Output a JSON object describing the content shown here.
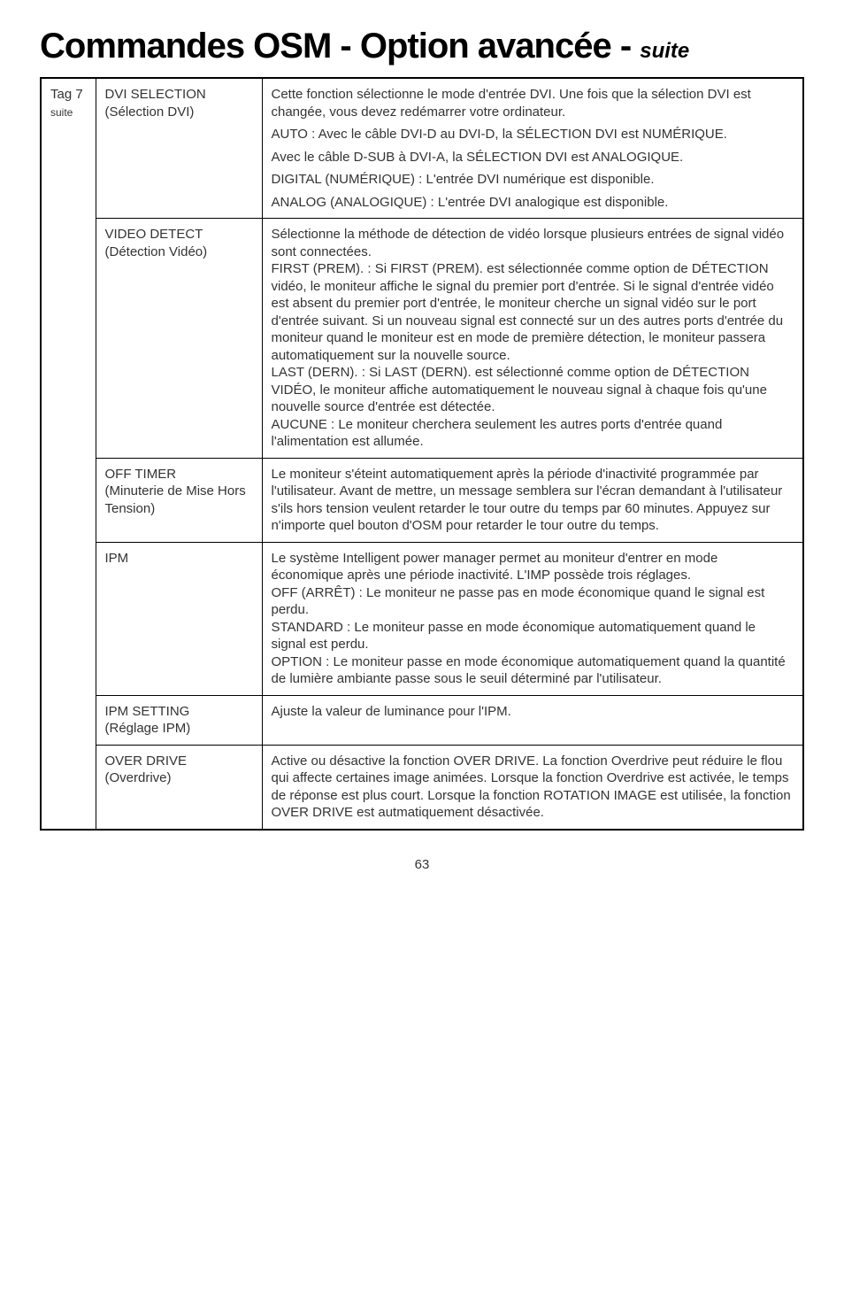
{
  "title_main": "Commandes OSM - Option avancée - ",
  "title_suite": "suite",
  "tag_label": "Tag 7",
  "tag_sub": "suite",
  "rows": [
    {
      "name": "DVI SELECTION",
      "name_sub": "(Sélection DVI)",
      "desc": [
        "Cette fonction sélectionne le mode d'entrée DVI. Une fois que la sélection DVI est changée, vous devez redémarrer votre ordinateur.",
        "AUTO : Avec le câble DVI-D au DVI-D, la SÉLECTION DVI est NUMÉRIQUE.",
        "Avec le câble D-SUB à DVI-A, la SÉLECTION DVI est ANALOGIQUE.",
        "DIGITAL (NUMÉRIQUE) : L'entrée DVI numérique est disponible.",
        "ANALOG (ANALOGIQUE) : L'entrée DVI analogique est disponible."
      ]
    },
    {
      "name": "VIDEO DETECT",
      "name_sub": "(Détection Vidéo)",
      "desc": [
        "Sélectionne la méthode de détection de vidéo lorsque plusieurs entrées de signal vidéo sont connectées.\nFIRST (PREM). : Si FIRST (PREM). est sélectionnée comme option de DÉTECTION vidéo, le moniteur affiche le signal du premier port d'entrée. Si le signal d'entrée vidéo est absent du premier port d'entrée, le moniteur cherche un signal vidéo sur le port d'entrée suivant. Si un nouveau signal est connecté sur un des autres ports d'entrée du moniteur quand le moniteur est en mode de première détection, le moniteur passera automatiquement sur la nouvelle source.\nLAST (DERN). : Si LAST (DERN). est sélectionné comme option de DÉTECTION VIDÉO, le moniteur affiche automatiquement le nouveau signal à chaque fois qu'une nouvelle source d'entrée est détectée.\nAUCUNE : Le moniteur cherchera seulement les autres ports d'entrée quand l'alimentation est allumée."
      ]
    },
    {
      "name": "OFF TIMER",
      "name_sub": "(Minuterie de Mise Hors Tension)",
      "desc": [
        "Le moniteur s'éteint automatiquement après la période d'inactivité programmée par l'utilisateur. Avant de mettre, un message semblera sur l'écran demandant à l'utilisateur s'ils hors tension veulent retarder le tour outre du temps par 60 minutes. Appuyez sur n'importe quel bouton d'OSM pour retarder le tour outre du temps."
      ]
    },
    {
      "name": "IPM",
      "name_sub": "",
      "desc": [
        "Le système Intelligent power manager permet au moniteur d'entrer en mode économique après une période inactivité. L'IMP possède trois réglages.\nOFF (ARRÊT) : Le moniteur ne passe pas en mode économique quand le signal est perdu.\nSTANDARD : Le moniteur passe en mode économique automatiquement quand le signal est perdu.\nOPTION : Le moniteur passe en mode économique automatiquement quand la quantité de lumière ambiante passe sous le seuil déterminé par l'utilisateur."
      ]
    },
    {
      "name": "IPM SETTING",
      "name_sub": "(Réglage IPM)",
      "desc": [
        "Ajuste la valeur de luminance pour l'IPM."
      ]
    },
    {
      "name": "OVER DRIVE",
      "name_sub": "(Overdrive)",
      "desc": [
        "Active ou désactive la fonction OVER DRIVE. La fonction Overdrive peut réduire le flou qui affecte certaines image animées. Lorsque la fonction Overdrive est activée, le temps de réponse est plus court. Lorsque la fonction ROTATION IMAGE est utilisée, la fonction OVER DRIVE est autmatiquement désactivée."
      ]
    }
  ],
  "page_number": "63"
}
